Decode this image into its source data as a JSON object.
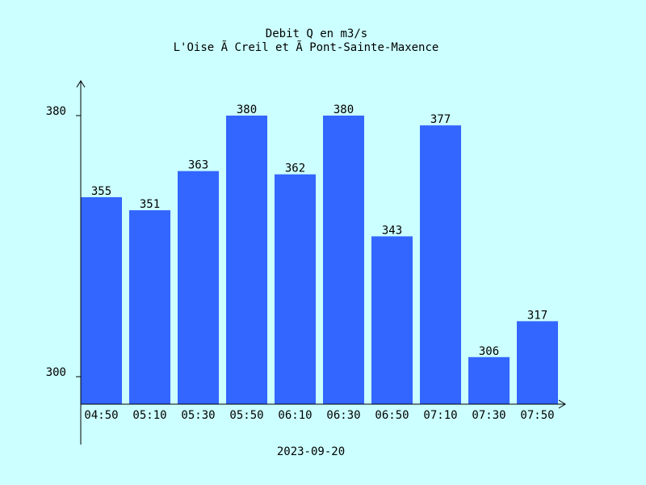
{
  "chart_data": {
    "type": "bar",
    "title": "Debit Q en m3/s",
    "subtitle": "L'Oise Ã  Creil et Ã  Pont-Sainte-Maxence",
    "xlabel": "2023-09-20",
    "ylabel": "",
    "categories": [
      "04:50",
      "05:10",
      "05:30",
      "05:50",
      "06:10",
      "06:30",
      "06:50",
      "07:10",
      "07:30",
      "07:50"
    ],
    "values": [
      355,
      351,
      363,
      380,
      362,
      380,
      343,
      377,
      306,
      317
    ],
    "y_ticks": [
      300,
      380
    ],
    "ylim": [
      291.4,
      380
    ],
    "bar_color": "#3366ff",
    "background_color": "#ccffff",
    "grid": false,
    "legend": "none"
  }
}
